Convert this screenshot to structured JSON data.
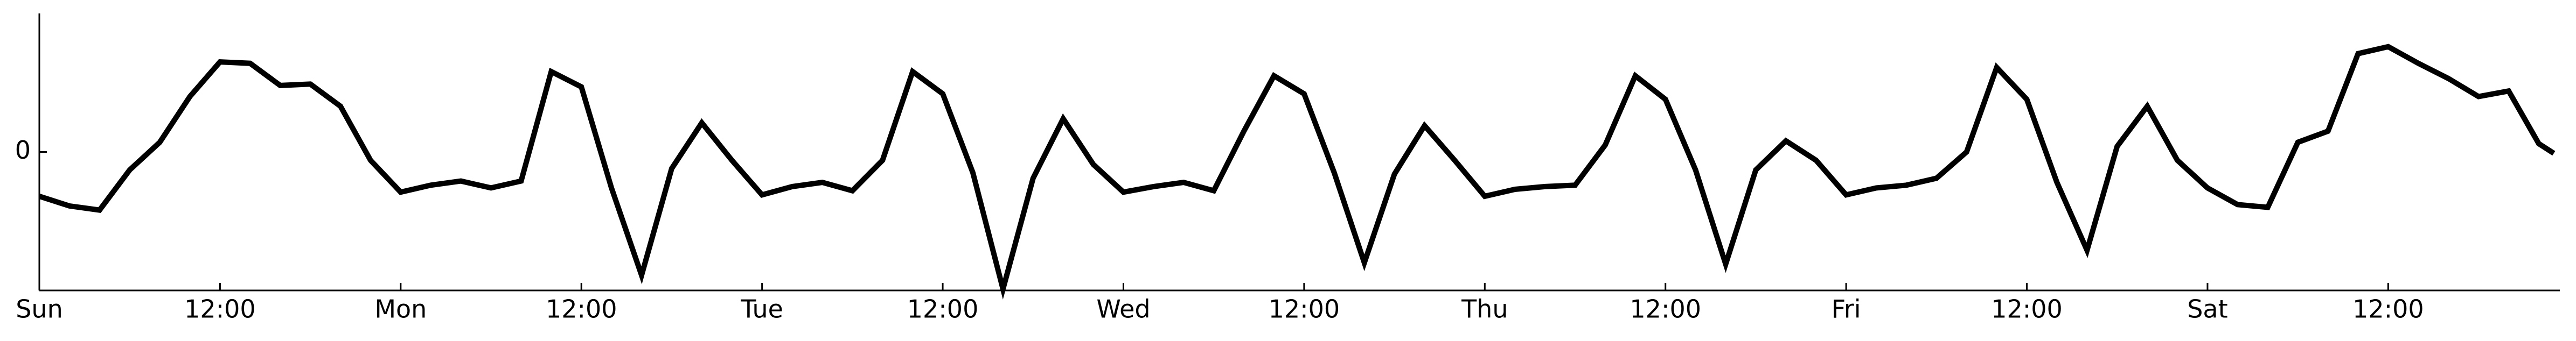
{
  "chart_data": {
    "type": "line",
    "x": [
      0,
      2,
      4,
      6,
      8,
      10,
      12,
      14,
      16,
      18,
      20,
      22,
      24,
      26,
      28,
      30,
      32,
      34,
      36,
      38,
      40,
      42,
      44,
      46,
      48,
      50,
      52,
      54,
      56,
      58,
      60,
      62,
      64,
      66,
      68,
      70,
      72,
      74,
      76,
      78,
      80,
      82,
      84,
      86,
      88,
      90,
      92,
      94,
      96,
      98,
      100,
      102,
      104,
      106,
      108,
      110,
      112,
      114,
      116,
      118,
      120,
      122,
      124,
      126,
      128,
      130,
      132,
      134,
      136,
      138,
      140,
      142,
      144,
      146,
      148,
      150,
      152,
      154,
      156,
      158,
      160,
      162,
      164,
      166,
      167
    ],
    "values": [
      -0.32,
      -0.39,
      -0.42,
      -0.13,
      0.07,
      0.4,
      0.65,
      0.64,
      0.48,
      0.49,
      0.33,
      -0.06,
      -0.29,
      -0.24,
      -0.21,
      -0.26,
      -0.21,
      0.58,
      0.47,
      -0.26,
      -0.89,
      -0.12,
      0.21,
      -0.06,
      -0.31,
      -0.25,
      -0.22,
      -0.28,
      -0.06,
      0.58,
      0.42,
      -0.15,
      -0.99,
      -0.19,
      0.24,
      -0.09,
      -0.29,
      -0.25,
      -0.22,
      -0.28,
      0.15,
      0.55,
      0.42,
      -0.15,
      -0.8,
      -0.16,
      0.19,
      -0.06,
      -0.32,
      -0.27,
      -0.25,
      -0.24,
      0.05,
      0.55,
      0.38,
      -0.13,
      -0.81,
      -0.13,
      0.08,
      -0.06,
      -0.31,
      -0.26,
      -0.24,
      -0.19,
      0,
      0.61,
      0.38,
      -0.22,
      -0.71,
      0.04,
      0.33,
      -0.06,
      -0.26,
      -0.38,
      -0.4,
      0.07,
      0.15,
      0.71,
      0.76,
      0.64,
      0.53,
      0.4,
      0.44,
      0.06,
      -0.01
    ],
    "color": "#000000",
    "xlim": [
      0,
      167.4
    ],
    "xticks": [
      {
        "value": 0,
        "label": "Sun"
      },
      {
        "value": 12,
        "label": "12:00"
      },
      {
        "value": 24,
        "label": "Mon"
      },
      {
        "value": 36,
        "label": "12:00"
      },
      {
        "value": 48,
        "label": "Tue"
      },
      {
        "value": 60,
        "label": "12:00"
      },
      {
        "value": 72,
        "label": "Wed"
      },
      {
        "value": 84,
        "label": "12:00"
      },
      {
        "value": 96,
        "label": "Thu"
      },
      {
        "value": 108,
        "label": "12:00"
      },
      {
        "value": 120,
        "label": "Fri"
      },
      {
        "value": 132,
        "label": "12:00"
      },
      {
        "value": 144,
        "label": "Sat"
      },
      {
        "value": 156,
        "label": "12:00"
      }
    ],
    "ylim": [
      -1,
      1
    ],
    "yticks": [
      0
    ],
    "grid": false
  }
}
